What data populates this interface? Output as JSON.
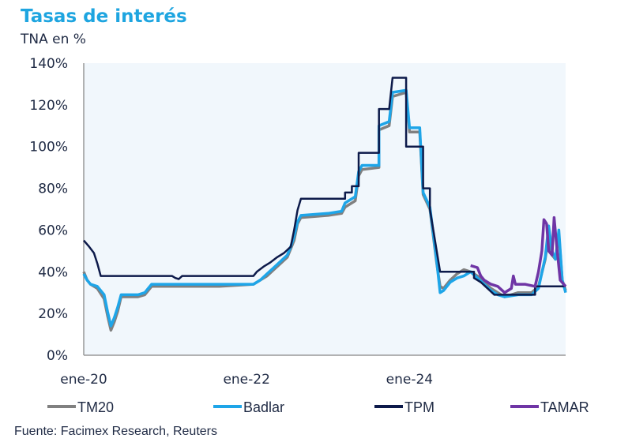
{
  "chart_data": {
    "type": "line",
    "title": "Tasas de interés",
    "ylabel": "TNA en %",
    "ylim": [
      0,
      140
    ],
    "yticks": [
      0,
      20,
      40,
      60,
      80,
      100,
      120,
      140
    ],
    "ytick_labels": [
      "0%",
      "20%",
      "40%",
      "60%",
      "80%",
      "100%",
      "120%",
      "140%"
    ],
    "x_unit": "months since ene-20",
    "xlim": [
      0,
      71
    ],
    "xticks": [
      0,
      24,
      48
    ],
    "xtick_labels": [
      "ene-20",
      "ene-22",
      "ene-24"
    ],
    "grid": false,
    "legend_position": "bottom",
    "series": [
      {
        "name": "TM20",
        "color": "#808080",
        "points": [
          [
            0,
            40
          ],
          [
            0.5,
            36
          ],
          [
            1,
            34
          ],
          [
            2,
            32
          ],
          [
            3,
            27
          ],
          [
            3.5,
            19
          ],
          [
            4,
            12
          ],
          [
            4.5,
            16
          ],
          [
            5,
            21
          ],
          [
            5.5,
            28
          ],
          [
            8,
            28
          ],
          [
            9,
            29
          ],
          [
            9.5,
            31
          ],
          [
            10,
            33
          ],
          [
            11,
            33
          ],
          [
            20,
            33
          ],
          [
            25,
            34
          ],
          [
            26,
            36
          ],
          [
            27,
            38
          ],
          [
            28,
            41
          ],
          [
            29,
            44
          ],
          [
            30,
            47
          ],
          [
            30.5,
            51
          ],
          [
            31,
            55
          ],
          [
            31.5,
            63
          ],
          [
            32,
            66
          ],
          [
            36,
            67
          ],
          [
            38,
            68
          ],
          [
            38.5,
            71
          ],
          [
            40,
            74
          ],
          [
            40.5,
            86
          ],
          [
            41,
            89
          ],
          [
            43.5,
            90
          ],
          [
            43.5,
            108
          ],
          [
            45,
            110
          ],
          [
            45.5,
            124
          ],
          [
            47.5,
            126
          ],
          [
            48,
            107
          ],
          [
            49.5,
            107
          ],
          [
            50,
            77
          ],
          [
            51,
            70
          ],
          [
            51.5,
            57
          ],
          [
            52,
            44
          ],
          [
            52.5,
            33
          ],
          [
            53,
            32
          ],
          [
            54,
            36
          ],
          [
            55,
            39
          ],
          [
            56,
            41
          ],
          [
            57,
            40
          ],
          [
            58,
            38
          ],
          [
            59,
            35
          ],
          [
            60,
            32
          ],
          [
            61,
            30
          ],
          [
            62,
            28
          ],
          [
            64,
            30
          ],
          [
            66,
            30
          ],
          [
            67,
            33
          ],
          [
            68,
            46
          ],
          [
            68.5,
            58
          ],
          [
            69,
            48
          ],
          [
            69.5,
            46
          ],
          [
            70,
            58
          ],
          [
            70.5,
            36
          ],
          [
            71,
            31
          ]
        ]
      },
      {
        "name": "Badlar",
        "color": "#1ea5e8",
        "points": [
          [
            0,
            39
          ],
          [
            0.5,
            36
          ],
          [
            1,
            34
          ],
          [
            2,
            33
          ],
          [
            3,
            29
          ],
          [
            3.5,
            21
          ],
          [
            4,
            14
          ],
          [
            4.5,
            18
          ],
          [
            5,
            23
          ],
          [
            5.5,
            29
          ],
          [
            8,
            29
          ],
          [
            9,
            30
          ],
          [
            9.5,
            32
          ],
          [
            10,
            34
          ],
          [
            11,
            34
          ],
          [
            20,
            34
          ],
          [
            25,
            34
          ],
          [
            26,
            36
          ],
          [
            27,
            39
          ],
          [
            28,
            42
          ],
          [
            29,
            45
          ],
          [
            30,
            48
          ],
          [
            30.5,
            52
          ],
          [
            31,
            57
          ],
          [
            31.5,
            64
          ],
          [
            32,
            67
          ],
          [
            36,
            68
          ],
          [
            38,
            69
          ],
          [
            38.5,
            73
          ],
          [
            40,
            76
          ],
          [
            40.5,
            88
          ],
          [
            41,
            91
          ],
          [
            43.5,
            91
          ],
          [
            43.5,
            110
          ],
          [
            45,
            112
          ],
          [
            45.5,
            126
          ],
          [
            47.5,
            127
          ],
          [
            48,
            109
          ],
          [
            49.5,
            109
          ],
          [
            50,
            78
          ],
          [
            51,
            71
          ],
          [
            51.5,
            58
          ],
          [
            52,
            45
          ],
          [
            52.5,
            30
          ],
          [
            53,
            31
          ],
          [
            54,
            35
          ],
          [
            55,
            37
          ],
          [
            56,
            38
          ],
          [
            57,
            40
          ],
          [
            58,
            37
          ],
          [
            59,
            34
          ],
          [
            60,
            31
          ],
          [
            61,
            29
          ],
          [
            62,
            28
          ],
          [
            64,
            29
          ],
          [
            66,
            29
          ],
          [
            67,
            32
          ],
          [
            68,
            47
          ],
          [
            68.5,
            62
          ],
          [
            69,
            50
          ],
          [
            69.5,
            46
          ],
          [
            70,
            60
          ],
          [
            70.5,
            36
          ],
          [
            71,
            30
          ]
        ]
      },
      {
        "name": "TPM",
        "color": "#0d1a4a",
        "points": [
          [
            0,
            55
          ],
          [
            0.8,
            52
          ],
          [
            1.5,
            49
          ],
          [
            2,
            44
          ],
          [
            2.5,
            38
          ],
          [
            13,
            38
          ],
          [
            13.5,
            37
          ],
          [
            14,
            36.5
          ],
          [
            14.5,
            38
          ],
          [
            25,
            38
          ],
          [
            25.5,
            40
          ],
          [
            26.5,
            42.5
          ],
          [
            27.5,
            44.5
          ],
          [
            28.5,
            47
          ],
          [
            29.5,
            49
          ],
          [
            30.5,
            52
          ],
          [
            31,
            60
          ],
          [
            31.5,
            69.5
          ],
          [
            32,
            75
          ],
          [
            38.5,
            75
          ],
          [
            38.5,
            78
          ],
          [
            39.5,
            78
          ],
          [
            39.5,
            81
          ],
          [
            40.5,
            81
          ],
          [
            40.5,
            97
          ],
          [
            43.5,
            97
          ],
          [
            43.5,
            118
          ],
          [
            45,
            118
          ],
          [
            45.5,
            133
          ],
          [
            47.5,
            133
          ],
          [
            47.5,
            100
          ],
          [
            50,
            100
          ],
          [
            50,
            80
          ],
          [
            51,
            80
          ],
          [
            51,
            70
          ],
          [
            51.5,
            60
          ],
          [
            52,
            50
          ],
          [
            52.5,
            40
          ],
          [
            57.5,
            40
          ],
          [
            57.5,
            37
          ],
          [
            58.5,
            35
          ],
          [
            59.5,
            32
          ],
          [
            60.5,
            29
          ],
          [
            66.5,
            29
          ],
          [
            66.5,
            33
          ],
          [
            71,
            33
          ]
        ]
      },
      {
        "name": "TAMAR",
        "color": "#6f35a5",
        "points": [
          [
            57,
            43
          ],
          [
            58,
            42
          ],
          [
            58.5,
            38
          ],
          [
            59,
            36
          ],
          [
            60,
            34
          ],
          [
            61,
            33
          ],
          [
            62,
            30
          ],
          [
            63,
            32
          ],
          [
            63.3,
            38
          ],
          [
            63.6,
            34
          ],
          [
            65,
            34
          ],
          [
            66.5,
            33
          ],
          [
            67,
            40
          ],
          [
            67.5,
            50
          ],
          [
            67.8,
            65
          ],
          [
            68.2,
            63
          ],
          [
            68.5,
            50
          ],
          [
            69,
            48
          ],
          [
            69.3,
            66
          ],
          [
            69.7,
            52
          ],
          [
            70.2,
            36
          ],
          [
            71,
            33
          ]
        ]
      }
    ]
  },
  "header": {
    "title": "Tasas de interés",
    "subtitle": "TNA en %"
  },
  "footer": {
    "source": "Fuente: Facimex Research, Reuters"
  }
}
